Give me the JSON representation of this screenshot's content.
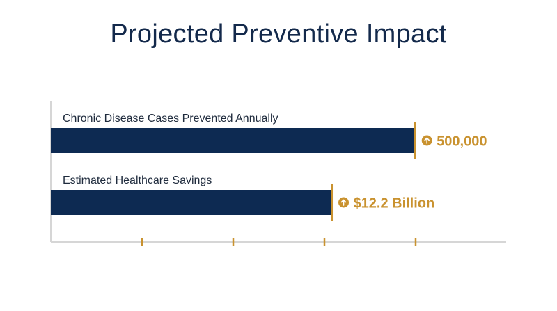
{
  "title": "Projected Preventive Impact",
  "colors": {
    "bar": "#0d2a52",
    "accent": "#c9922f",
    "axis": "#d6d6d6",
    "label": "#1f2b3d"
  },
  "chart_data": {
    "type": "bar",
    "orientation": "horizontal",
    "title": "Projected Preventive Impact",
    "categories": [
      "Chronic Disease Cases Prevented Annually",
      "Estimated Healthcare Savings"
    ],
    "series": [
      {
        "values": [
          500000,
          12.2
        ]
      }
    ],
    "value_labels": [
      "500,000",
      "$12.2 Billion"
    ],
    "relative_fill": [
      0.8,
      0.617
    ],
    "x_ticks": 4,
    "marker_icon": "arrow-up-circle-icon",
    "grid": false,
    "legend": "none"
  }
}
